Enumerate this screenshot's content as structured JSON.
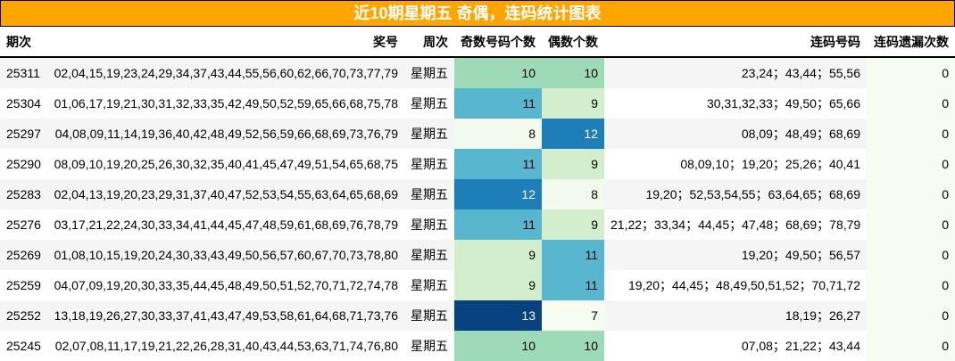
{
  "title": "近10期星期五 奇偶，连码统计图表",
  "headers": {
    "issue": "期次",
    "numbers": "奖号",
    "weekday": "周次",
    "odd_count": "奇数号码个数",
    "even_count": "偶数个数",
    "consecutive": "连码号码",
    "consecutive_omission": "连码遗漏次数"
  },
  "colors": {
    "title_bg": "#ffa500",
    "scale": {
      "7": "#f7fcf0",
      "8": "#f2faed",
      "9": "#d3eecd",
      "10": "#9fdab8",
      "11": "#58b6cf",
      "12": "#1e7fb8",
      "13": "#08437f"
    }
  },
  "rows": [
    {
      "issue": "25311",
      "numbers": "02,04,15,19,23,24,29,34,37,43,44,55,56,60,62,66,70,73,77,79",
      "weekday": "星期五",
      "odd": "10",
      "even": "10",
      "consecutive": "23,24；43,44；55,56",
      "omission": "0"
    },
    {
      "issue": "25304",
      "numbers": "01,06,17,19,21,30,31,32,33,35,42,49,50,52,59,65,66,68,75,78",
      "weekday": "星期五",
      "odd": "11",
      "even": "9",
      "consecutive": "30,31,32,33；49,50；65,66",
      "omission": "0"
    },
    {
      "issue": "25297",
      "numbers": "04,08,09,11,14,19,36,40,42,48,49,52,56,59,66,68,69,73,76,79",
      "weekday": "星期五",
      "odd": "8",
      "even": "12",
      "consecutive": "08,09；48,49；68,69",
      "omission": "0"
    },
    {
      "issue": "25290",
      "numbers": "08,09,10,19,20,25,26,30,32,35,40,41,45,47,49,51,54,65,68,75",
      "weekday": "星期五",
      "odd": "11",
      "even": "9",
      "consecutive": "08,09,10；19,20；25,26；40,41",
      "omission": "0"
    },
    {
      "issue": "25283",
      "numbers": "02,04,13,19,20,23,29,31,37,40,47,52,53,54,55,63,64,65,68,69",
      "weekday": "星期五",
      "odd": "12",
      "even": "8",
      "consecutive": "19,20；52,53,54,55；63,64,65；68,69",
      "omission": "0"
    },
    {
      "issue": "25276",
      "numbers": "03,17,21,22,24,30,33,34,41,44,45,47,48,59,61,68,69,76,78,79",
      "weekday": "星期五",
      "odd": "11",
      "even": "9",
      "consecutive": "21,22；33,34；44,45；47,48；68,69；78,79",
      "omission": "0"
    },
    {
      "issue": "25269",
      "numbers": "01,08,10,15,19,20,24,30,33,43,49,50,56,57,60,67,70,73,78,80",
      "weekday": "星期五",
      "odd": "9",
      "even": "11",
      "consecutive": "19,20；49,50；56,57",
      "omission": "0"
    },
    {
      "issue": "25259",
      "numbers": "04,07,09,19,20,30,33,35,44,45,48,49,50,51,52,70,71,72,74,78",
      "weekday": "星期五",
      "odd": "9",
      "even": "11",
      "consecutive": "19,20；44,45；48,49,50,51,52；70,71,72",
      "omission": "0"
    },
    {
      "issue": "25252",
      "numbers": "13,18,19,26,27,30,33,37,41,43,47,49,53,58,61,64,68,71,73,76",
      "weekday": "星期五",
      "odd": "13",
      "even": "7",
      "consecutive": "18,19；26,27",
      "omission": "0"
    },
    {
      "issue": "25245",
      "numbers": "02,07,08,11,17,19,21,22,26,28,31,40,43,44,53,63,71,74,76,80",
      "weekday": "星期五",
      "odd": "10",
      "even": "10",
      "consecutive": "07,08；21,22；43,44",
      "omission": "0"
    }
  ]
}
